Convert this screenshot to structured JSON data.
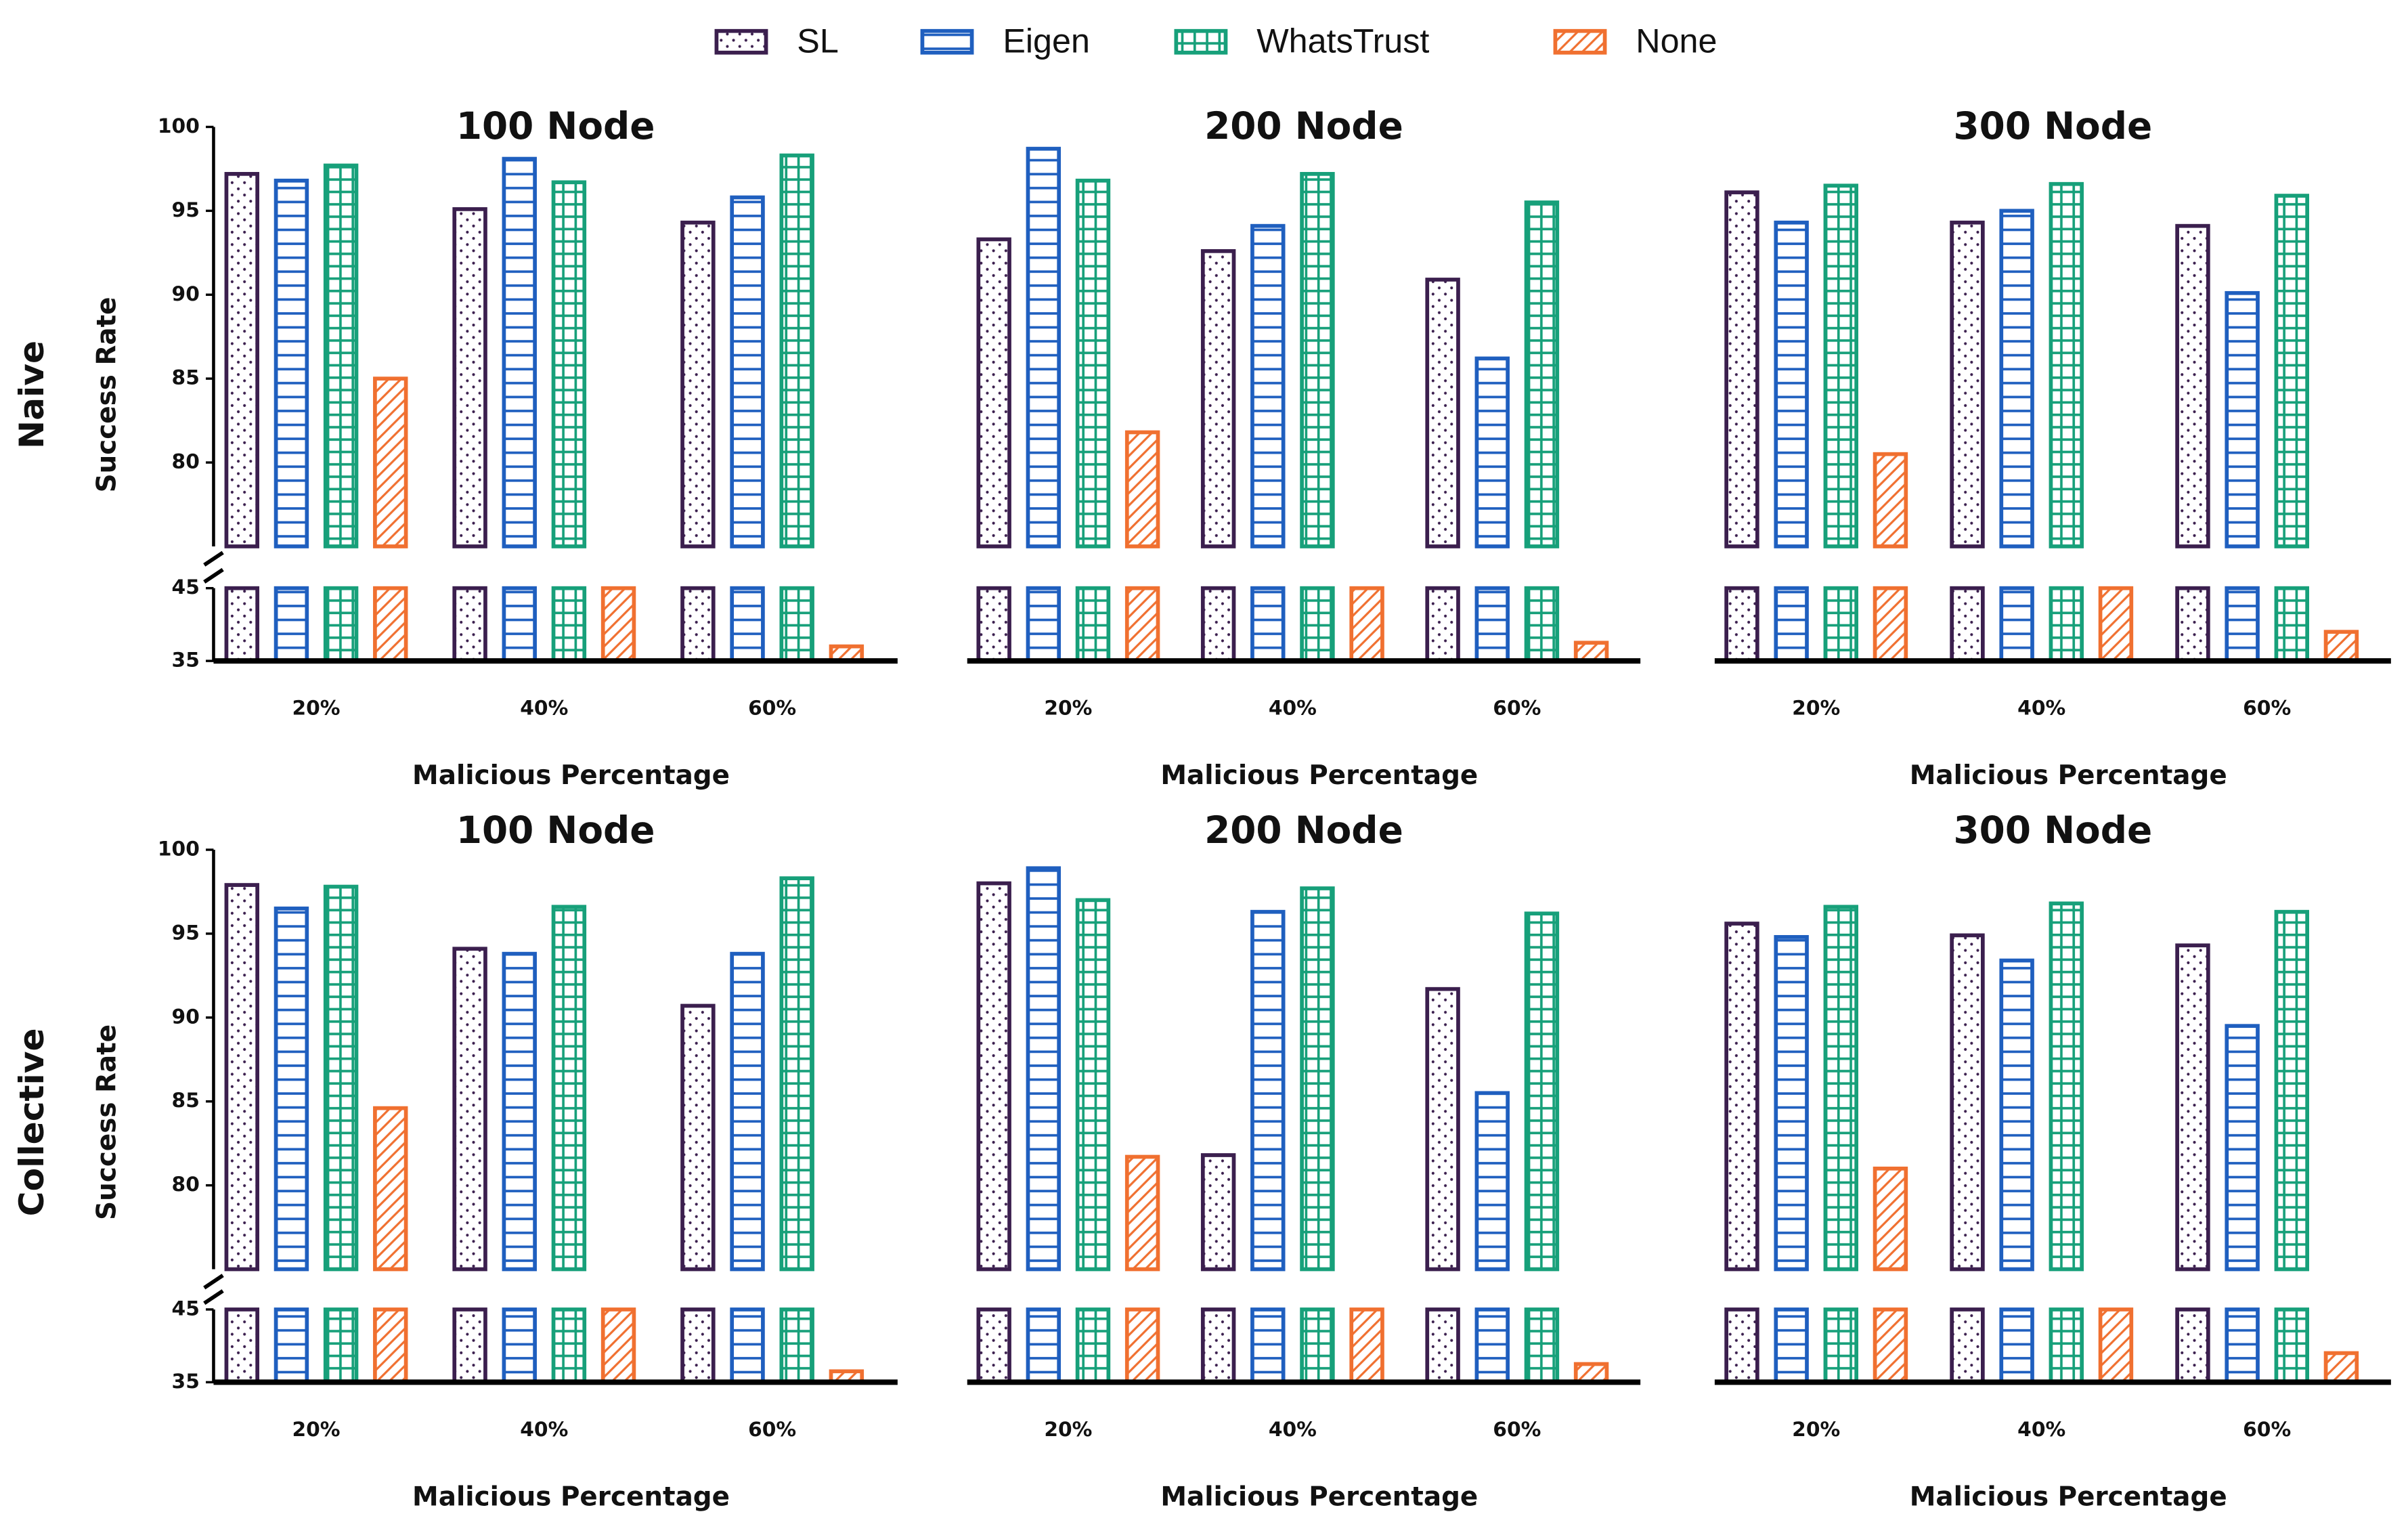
{
  "chart_data": [
    {
      "type": "bar",
      "title": "100 Node",
      "row_label": "Naive",
      "ylabel": "Success Rate",
      "xlabel": "Malicious Percentage",
      "legend": "top",
      "categories": [
        "20%",
        "40%",
        "60%"
      ],
      "ylim": [
        35,
        100
      ],
      "y_break": [
        45,
        75
      ],
      "yticks": [
        35,
        45,
        80,
        85,
        90,
        95,
        100
      ],
      "series": [
        {
          "name": "SL",
          "color": "#3b1f4e",
          "values": [
            97.2,
            95.1,
            94.3
          ]
        },
        {
          "name": "Eigen",
          "color": "#1f5fbf",
          "values": [
            96.8,
            98.1,
            95.8
          ]
        },
        {
          "name": "WhatsTrust",
          "color": "#17a07a",
          "values": [
            97.7,
            96.7,
            98.3
          ]
        },
        {
          "name": "None",
          "color": "#f07030",
          "values": [
            85,
            50,
            37
          ]
        }
      ]
    },
    {
      "type": "bar",
      "title": "200 Node",
      "xlabel": "Malicious Percentage",
      "categories": [
        "20%",
        "40%",
        "60%"
      ],
      "ylim": [
        35,
        100
      ],
      "y_break": [
        45,
        75
      ],
      "series": [
        {
          "name": "SL",
          "color": "#3b1f4e",
          "values": [
            93.3,
            92.6,
            90.9
          ]
        },
        {
          "name": "Eigen",
          "color": "#1f5fbf",
          "values": [
            98.7,
            94.1,
            86.2
          ]
        },
        {
          "name": "WhatsTrust",
          "color": "#17a07a",
          "values": [
            96.8,
            97.2,
            95.5
          ]
        },
        {
          "name": "None",
          "color": "#f07030",
          "values": [
            81.8,
            50,
            37.5
          ]
        }
      ]
    },
    {
      "type": "bar",
      "title": "300 Node",
      "xlabel": "Malicious Percentage",
      "categories": [
        "20%",
        "40%",
        "60%"
      ],
      "ylim": [
        35,
        100
      ],
      "y_break": [
        45,
        75
      ],
      "series": [
        {
          "name": "SL",
          "color": "#3b1f4e",
          "values": [
            96.1,
            94.3,
            94.1
          ]
        },
        {
          "name": "Eigen",
          "color": "#1f5fbf",
          "values": [
            94.3,
            95,
            90.1
          ]
        },
        {
          "name": "WhatsTrust",
          "color": "#17a07a",
          "values": [
            96.5,
            96.6,
            95.9
          ]
        },
        {
          "name": "None",
          "color": "#f07030",
          "values": [
            80.5,
            50,
            39
          ]
        }
      ]
    },
    {
      "type": "bar",
      "title": "100 Node",
      "row_label": "Collective",
      "ylabel": "Success Rate",
      "xlabel": "Malicious Percentage",
      "categories": [
        "20%",
        "40%",
        "60%"
      ],
      "ylim": [
        35,
        100
      ],
      "y_break": [
        45,
        75
      ],
      "yticks": [
        35,
        45,
        80,
        85,
        90,
        95,
        100
      ],
      "series": [
        {
          "name": "SL",
          "color": "#3b1f4e",
          "values": [
            97.9,
            94.1,
            90.7
          ]
        },
        {
          "name": "Eigen",
          "color": "#1f5fbf",
          "values": [
            96.5,
            93.8,
            93.8
          ]
        },
        {
          "name": "WhatsTrust",
          "color": "#17a07a",
          "values": [
            97.8,
            96.6,
            98.3
          ]
        },
        {
          "name": "None",
          "color": "#f07030",
          "values": [
            84.6,
            50,
            36.5
          ]
        }
      ]
    },
    {
      "type": "bar",
      "title": "200 Node",
      "xlabel": "Malicious Percentage",
      "categories": [
        "20%",
        "40%",
        "60%"
      ],
      "ylim": [
        35,
        100
      ],
      "y_break": [
        45,
        75
      ],
      "series": [
        {
          "name": "SL",
          "color": "#3b1f4e",
          "values": [
            98,
            81.8,
            91.7
          ]
        },
        {
          "name": "Eigen",
          "color": "#1f5fbf",
          "values": [
            98.9,
            96.3,
            85.5
          ]
        },
        {
          "name": "WhatsTrust",
          "color": "#17a07a",
          "values": [
            97,
            97.7,
            96.2
          ]
        },
        {
          "name": "None",
          "color": "#f07030",
          "values": [
            81.7,
            50,
            37.5
          ]
        }
      ]
    },
    {
      "type": "bar",
      "title": "300 Node",
      "xlabel": "Malicious Percentage",
      "categories": [
        "20%",
        "40%",
        "60%"
      ],
      "ylim": [
        35,
        100
      ],
      "y_break": [
        45,
        75
      ],
      "series": [
        {
          "name": "SL",
          "color": "#3b1f4e",
          "values": [
            95.6,
            94.9,
            94.3
          ]
        },
        {
          "name": "Eigen",
          "color": "#1f5fbf",
          "values": [
            94.8,
            93.4,
            89.5
          ]
        },
        {
          "name": "WhatsTrust",
          "color": "#17a07a",
          "values": [
            96.6,
            96.8,
            96.3
          ]
        },
        {
          "name": "None",
          "color": "#f07030",
          "values": [
            81,
            50,
            39
          ]
        }
      ]
    }
  ]
}
